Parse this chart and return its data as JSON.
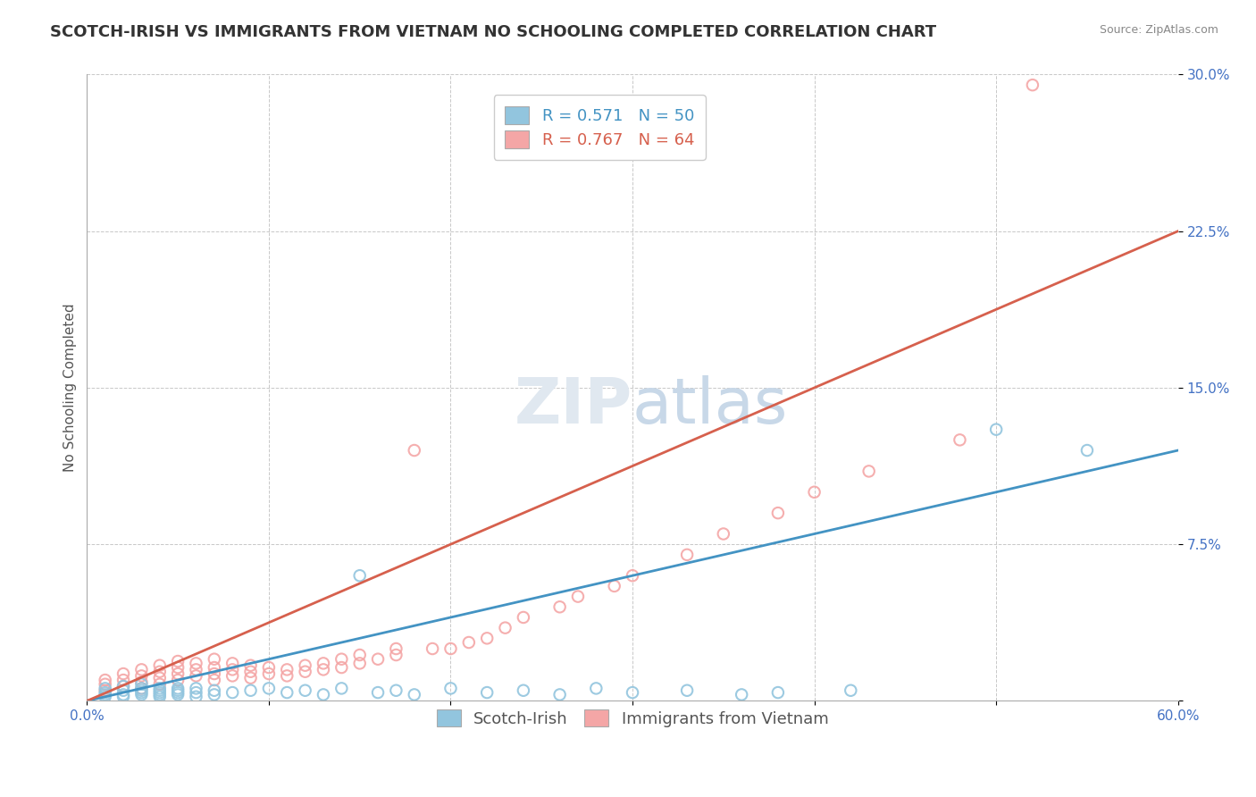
{
  "title": "SCOTCH-IRISH VS IMMIGRANTS FROM VIETNAM NO SCHOOLING COMPLETED CORRELATION CHART",
  "source": "Source: ZipAtlas.com",
  "ylabel": "No Schooling Completed",
  "series1_label": "Scotch-Irish",
  "series2_label": "Immigrants from Vietnam",
  "series1_color": "#92c5de",
  "series2_color": "#f4a6a6",
  "series1_line_color": "#4393c3",
  "series2_line_color": "#d6604d",
  "r1": 0.571,
  "n1": 50,
  "r2": 0.767,
  "n2": 64,
  "xlim": [
    0.0,
    0.6
  ],
  "ylim": [
    0.0,
    0.3
  ],
  "xticks": [
    0.0,
    0.1,
    0.2,
    0.3,
    0.4,
    0.5,
    0.6
  ],
  "yticks": [
    0.0,
    0.075,
    0.15,
    0.225,
    0.3
  ],
  "title_fontsize": 13,
  "axis_fontsize": 11,
  "tick_fontsize": 11,
  "legend_fontsize": 13,
  "background_color": "#ffffff",
  "grid_color": "#c8c8c8",
  "series1_x": [
    0.01,
    0.01,
    0.01,
    0.01,
    0.02,
    0.02,
    0.02,
    0.02,
    0.03,
    0.03,
    0.03,
    0.03,
    0.03,
    0.04,
    0.04,
    0.04,
    0.04,
    0.04,
    0.05,
    0.05,
    0.05,
    0.05,
    0.06,
    0.06,
    0.06,
    0.07,
    0.07,
    0.08,
    0.09,
    0.1,
    0.11,
    0.12,
    0.13,
    0.14,
    0.15,
    0.16,
    0.17,
    0.18,
    0.2,
    0.22,
    0.24,
    0.26,
    0.28,
    0.3,
    0.33,
    0.36,
    0.38,
    0.42,
    0.5,
    0.55
  ],
  "series1_y": [
    0.002,
    0.004,
    0.006,
    0.003,
    0.002,
    0.005,
    0.003,
    0.007,
    0.003,
    0.005,
    0.004,
    0.006,
    0.008,
    0.003,
    0.005,
    0.002,
    0.004,
    0.006,
    0.004,
    0.006,
    0.003,
    0.005,
    0.004,
    0.006,
    0.002,
    0.005,
    0.003,
    0.004,
    0.005,
    0.006,
    0.004,
    0.005,
    0.003,
    0.006,
    0.06,
    0.004,
    0.005,
    0.003,
    0.006,
    0.004,
    0.005,
    0.003,
    0.006,
    0.004,
    0.005,
    0.003,
    0.004,
    0.005,
    0.13,
    0.12
  ],
  "series2_x": [
    0.01,
    0.01,
    0.01,
    0.02,
    0.02,
    0.02,
    0.03,
    0.03,
    0.03,
    0.03,
    0.04,
    0.04,
    0.04,
    0.04,
    0.05,
    0.05,
    0.05,
    0.05,
    0.06,
    0.06,
    0.06,
    0.07,
    0.07,
    0.07,
    0.07,
    0.08,
    0.08,
    0.08,
    0.09,
    0.09,
    0.09,
    0.1,
    0.1,
    0.11,
    0.11,
    0.12,
    0.12,
    0.13,
    0.13,
    0.14,
    0.14,
    0.15,
    0.15,
    0.16,
    0.17,
    0.17,
    0.18,
    0.19,
    0.2,
    0.21,
    0.22,
    0.23,
    0.24,
    0.26,
    0.27,
    0.29,
    0.3,
    0.33,
    0.35,
    0.38,
    0.4,
    0.43,
    0.48,
    0.52
  ],
  "series2_y": [
    0.005,
    0.008,
    0.01,
    0.007,
    0.01,
    0.013,
    0.006,
    0.009,
    0.012,
    0.015,
    0.008,
    0.011,
    0.014,
    0.017,
    0.01,
    0.013,
    0.016,
    0.019,
    0.012,
    0.015,
    0.018,
    0.01,
    0.013,
    0.016,
    0.02,
    0.012,
    0.015,
    0.018,
    0.011,
    0.014,
    0.017,
    0.013,
    0.016,
    0.012,
    0.015,
    0.014,
    0.017,
    0.015,
    0.018,
    0.016,
    0.02,
    0.018,
    0.022,
    0.02,
    0.022,
    0.025,
    0.12,
    0.025,
    0.025,
    0.028,
    0.03,
    0.035,
    0.04,
    0.045,
    0.05,
    0.055,
    0.06,
    0.07,
    0.08,
    0.09,
    0.1,
    0.11,
    0.125,
    0.295
  ],
  "line1_x0": 0.0,
  "line1_y0": 0.0,
  "line1_x1": 0.6,
  "line1_y1": 0.12,
  "line2_x0": 0.0,
  "line2_y0": 0.0,
  "line2_x1": 0.6,
  "line2_y1": 0.225
}
